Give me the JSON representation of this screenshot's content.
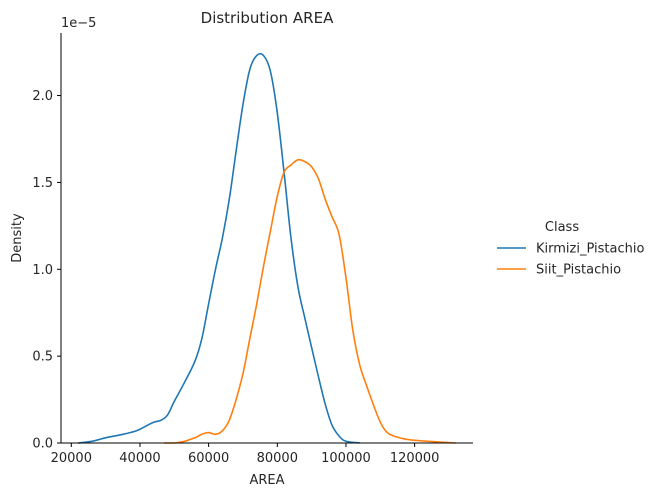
{
  "chart_data": {
    "type": "line",
    "title": "Distribution AREA",
    "xlabel": "AREA",
    "ylabel": "Density",
    "y_offset_text": "1e−5",
    "xlim": [
      17000,
      137000
    ],
    "ylim": [
      0,
      2.36
    ],
    "x_ticks": [
      20000,
      40000,
      60000,
      80000,
      100000,
      120000
    ],
    "x_tick_labels": [
      "20000",
      "40000",
      "60000",
      "80000",
      "100000",
      "120000"
    ],
    "y_ticks": [
      0.0,
      0.5,
      1.0,
      1.5,
      2.0
    ],
    "y_tick_labels": [
      "0.0",
      "0.5",
      "1.0",
      "1.5",
      "2.0"
    ],
    "grid": false,
    "legend": {
      "title": "Class",
      "position": "right"
    },
    "series": [
      {
        "name": "Kirmizi_Pistachio",
        "color": "#1f77b4",
        "points": [
          [
            22000,
            0.0
          ],
          [
            26000,
            0.01
          ],
          [
            30000,
            0.03
          ],
          [
            35000,
            0.05
          ],
          [
            39000,
            0.07
          ],
          [
            42000,
            0.1
          ],
          [
            44000,
            0.12
          ],
          [
            46000,
            0.13
          ],
          [
            48000,
            0.16
          ],
          [
            50000,
            0.24
          ],
          [
            53000,
            0.35
          ],
          [
            56000,
            0.47
          ],
          [
            58000,
            0.6
          ],
          [
            60000,
            0.8
          ],
          [
            62000,
            1.0
          ],
          [
            64000,
            1.18
          ],
          [
            66000,
            1.4
          ],
          [
            68000,
            1.68
          ],
          [
            70000,
            1.95
          ],
          [
            72000,
            2.15
          ],
          [
            74000,
            2.23
          ],
          [
            76000,
            2.23
          ],
          [
            78000,
            2.14
          ],
          [
            80000,
            1.9
          ],
          [
            82000,
            1.55
          ],
          [
            84000,
            1.18
          ],
          [
            86000,
            0.9
          ],
          [
            88000,
            0.72
          ],
          [
            90000,
            0.55
          ],
          [
            92000,
            0.38
          ],
          [
            94000,
            0.22
          ],
          [
            96000,
            0.1
          ],
          [
            98000,
            0.04
          ],
          [
            100000,
            0.01
          ],
          [
            104000,
            0.0
          ]
        ]
      },
      {
        "name": "Siit_Pistachio",
        "color": "#ff7f0e",
        "points": [
          [
            47000,
            0.0
          ],
          [
            50000,
            0.0
          ],
          [
            53000,
            0.01
          ],
          [
            56000,
            0.03
          ],
          [
            58000,
            0.05
          ],
          [
            60000,
            0.06
          ],
          [
            62000,
            0.05
          ],
          [
            64000,
            0.07
          ],
          [
            66000,
            0.13
          ],
          [
            68000,
            0.25
          ],
          [
            70000,
            0.4
          ],
          [
            72000,
            0.6
          ],
          [
            74000,
            0.8
          ],
          [
            76000,
            1.02
          ],
          [
            78000,
            1.22
          ],
          [
            80000,
            1.42
          ],
          [
            82000,
            1.56
          ],
          [
            84000,
            1.6
          ],
          [
            86000,
            1.63
          ],
          [
            88000,
            1.62
          ],
          [
            90000,
            1.59
          ],
          [
            92000,
            1.52
          ],
          [
            94000,
            1.4
          ],
          [
            96000,
            1.3
          ],
          [
            98000,
            1.2
          ],
          [
            100000,
            0.95
          ],
          [
            102000,
            0.65
          ],
          [
            104000,
            0.45
          ],
          [
            106000,
            0.33
          ],
          [
            108000,
            0.22
          ],
          [
            110000,
            0.12
          ],
          [
            112000,
            0.06
          ],
          [
            114000,
            0.04
          ],
          [
            118000,
            0.02
          ],
          [
            124000,
            0.01
          ],
          [
            132000,
            0.0
          ]
        ]
      }
    ]
  }
}
